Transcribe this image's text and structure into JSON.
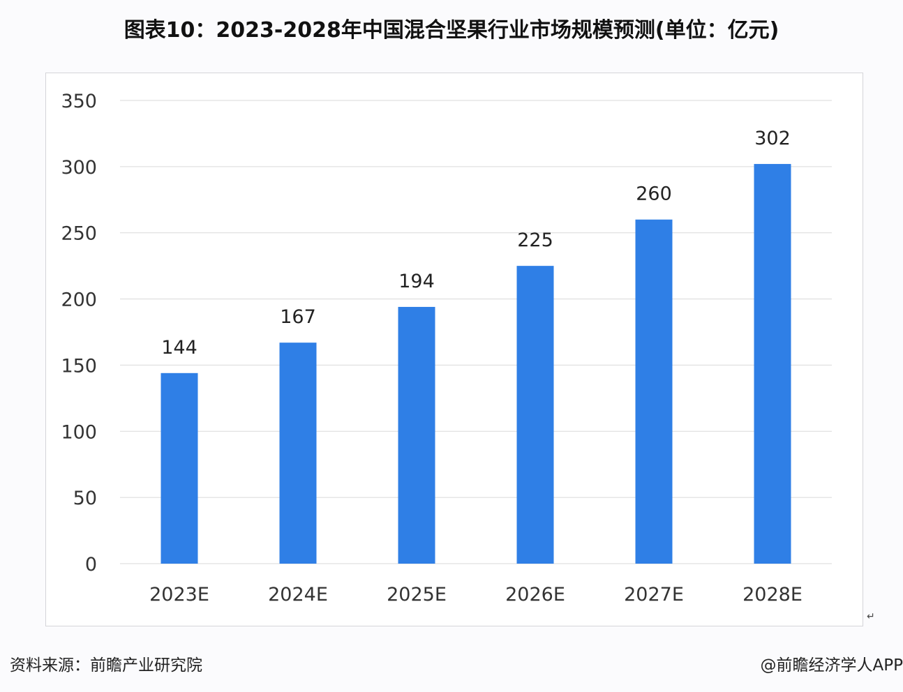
{
  "title": "图表10：2023-2028年中国混合坚果行业市场规模预测(单位：亿元)",
  "source": "资料来源：前瞻产业研究院",
  "brand": "@前瞻经济学人APP",
  "chart_data": {
    "type": "bar",
    "title": "图表10：2023-2028年中国混合坚果行业市场规模预测(单位：亿元)",
    "categories": [
      "2023E",
      "2024E",
      "2025E",
      "2026E",
      "2027E",
      "2028E"
    ],
    "values": [
      144,
      167,
      194,
      225,
      260,
      302
    ],
    "ylim": [
      0,
      350
    ],
    "yticks": [
      0,
      50,
      100,
      150,
      200,
      250,
      300,
      350
    ],
    "grid": true,
    "data_labels": true,
    "bar_color": "#2f7fe6",
    "xlabel": "",
    "ylabel": ""
  }
}
